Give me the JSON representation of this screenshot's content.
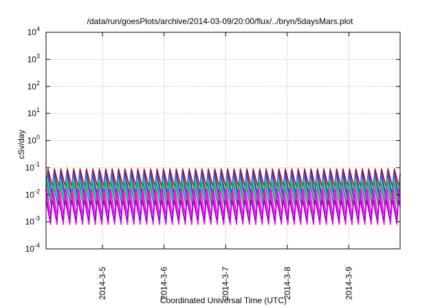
{
  "chart_data": {
    "type": "line",
    "title": "/data/run/goesPlots/archive/2014-03-09/20:00/flux/../bryn/5daysMars.plot",
    "xlabel": "Coordinated Universal Time (UTC)",
    "ylabel": "cSv/day",
    "yscale": "log",
    "ylim": [
      0.0001,
      10000
    ],
    "xlim": [
      "2014-03-04 02:00",
      "2014-03-09 20:00"
    ],
    "grid": true,
    "legend": "none",
    "y_ticks": [
      {
        "base": "10",
        "exp": "-4",
        "value": 0.0001
      },
      {
        "base": "10",
        "exp": "-3",
        "value": 0.001
      },
      {
        "base": "10",
        "exp": "-2",
        "value": 0.01
      },
      {
        "base": "10",
        "exp": "-1",
        "value": 0.1
      },
      {
        "base": "10",
        "exp": "0",
        "value": 1
      },
      {
        "base": "10",
        "exp": "1",
        "value": 10
      },
      {
        "base": "10",
        "exp": "2",
        "value": 100
      },
      {
        "base": "10",
        "exp": "3",
        "value": 1000
      },
      {
        "base": "10",
        "exp": "4",
        "value": 10000
      }
    ],
    "x_ticks": [
      {
        "label": "2014-3-5",
        "date": "2014-03-05 00:00"
      },
      {
        "label": "2014-3-6",
        "date": "2014-03-06 00:00"
      },
      {
        "label": "2014-3-7",
        "date": "2014-03-07 00:00"
      },
      {
        "label": "2014-3-8",
        "date": "2014-03-08 00:00"
      },
      {
        "label": "2014-3-9",
        "date": "2014-03-09 00:00"
      }
    ],
    "oscillation_period_hours": 2.5,
    "series": [
      {
        "color": "#cc0000",
        "peak": 0.09,
        "trough": 0.02
      },
      {
        "color": "#1f3fbf",
        "peak": 0.08,
        "trough": 0.01
      },
      {
        "color": "#4a5fd0",
        "peak": 0.06,
        "trough": 0.008
      },
      {
        "color": "#00cccc",
        "peak": 0.04,
        "trough": 0.005
      },
      {
        "color": "#22aa22",
        "peak": 0.03,
        "trough": 0.004
      },
      {
        "color": "#ff00ff",
        "peak": 0.02,
        "trough": 0.0015
      },
      {
        "color": "#ee00ee",
        "peak": 0.012,
        "trough": 0.0008
      },
      {
        "color": "#9900cc",
        "peak": 0.007,
        "trough": 0.001
      }
    ]
  }
}
